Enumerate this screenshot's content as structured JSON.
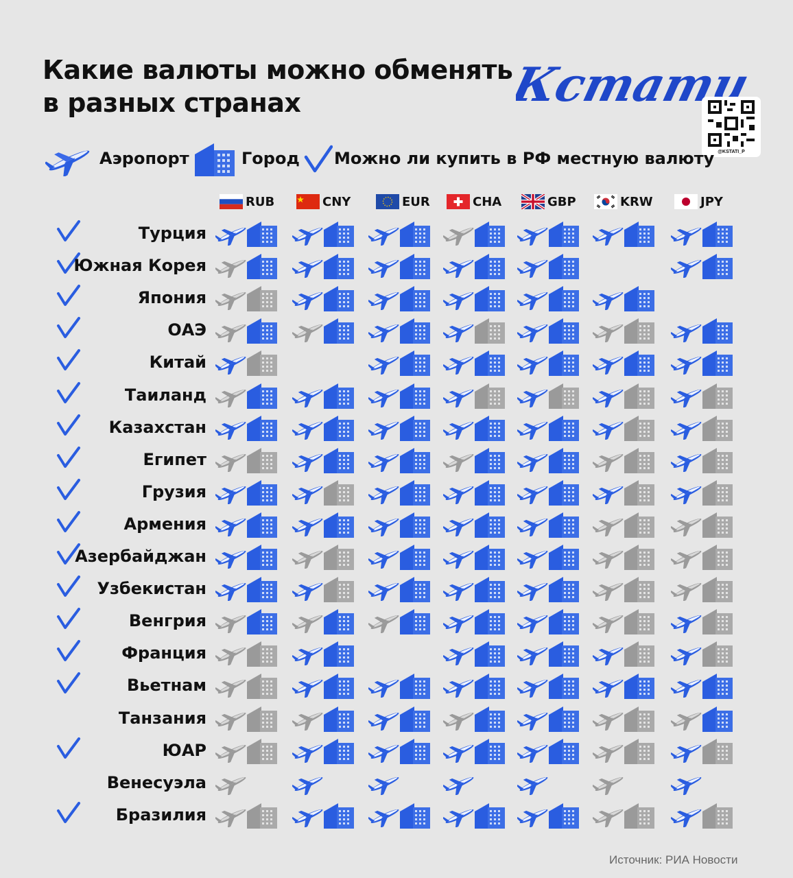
{
  "title_lines": [
    "Какие валюты можно обменять",
    "в разных странах"
  ],
  "logo_text": "Кстати,",
  "qr_handle": "@KSTATI_P",
  "legend": {
    "airport": "Аэропорт",
    "city": "Город",
    "buy_in_rf": "Можно ли купить в РФ местную валюту"
  },
  "currencies": [
    "RUB",
    "CNY",
    "EUR",
    "CHA",
    "GBP",
    "KRW",
    "JPY"
  ],
  "colors": {
    "blue": "#2a5de0",
    "grey": "#9a9a9a",
    "check": "#2a5de0"
  },
  "rows": [
    {
      "country": "Турция",
      "check": true,
      "cells": [
        [
          "b",
          "b"
        ],
        [
          "b",
          "b"
        ],
        [
          "b",
          "b"
        ],
        [
          "g",
          "b"
        ],
        [
          "b",
          "b"
        ],
        [
          "b",
          "b"
        ],
        [
          "b",
          "b"
        ]
      ]
    },
    {
      "country": "Южная Корея",
      "check": true,
      "cells": [
        [
          "g",
          "b"
        ],
        [
          "b",
          "b"
        ],
        [
          "b",
          "b"
        ],
        [
          "b",
          "b"
        ],
        [
          "b",
          "b"
        ],
        [
          "-",
          "-"
        ],
        [
          "b",
          "b"
        ]
      ]
    },
    {
      "country": "Япония",
      "check": true,
      "cells": [
        [
          "g",
          "g"
        ],
        [
          "b",
          "b"
        ],
        [
          "b",
          "b"
        ],
        [
          "b",
          "b"
        ],
        [
          "b",
          "b"
        ],
        [
          "b",
          "b"
        ],
        [
          "-",
          "-"
        ]
      ]
    },
    {
      "country": "ОАЭ",
      "check": true,
      "cells": [
        [
          "g",
          "b"
        ],
        [
          "g",
          "b"
        ],
        [
          "b",
          "b"
        ],
        [
          "b",
          "g"
        ],
        [
          "b",
          "b"
        ],
        [
          "g",
          "g"
        ],
        [
          "b",
          "b"
        ]
      ]
    },
    {
      "country": "Китай",
      "check": true,
      "cells": [
        [
          "b",
          "g"
        ],
        [
          "-",
          "-"
        ],
        [
          "b",
          "b"
        ],
        [
          "b",
          "b"
        ],
        [
          "b",
          "b"
        ],
        [
          "b",
          "b"
        ],
        [
          "b",
          "b"
        ]
      ]
    },
    {
      "country": "Таиланд",
      "check": true,
      "cells": [
        [
          "g",
          "b"
        ],
        [
          "b",
          "b"
        ],
        [
          "b",
          "b"
        ],
        [
          "b",
          "g"
        ],
        [
          "b",
          "g"
        ],
        [
          "b",
          "g"
        ],
        [
          "b",
          "g"
        ]
      ]
    },
    {
      "country": "Казахстан",
      "check": true,
      "cells": [
        [
          "b",
          "b"
        ],
        [
          "b",
          "b"
        ],
        [
          "b",
          "b"
        ],
        [
          "b",
          "b"
        ],
        [
          "b",
          "b"
        ],
        [
          "b",
          "g"
        ],
        [
          "b",
          "g"
        ]
      ]
    },
    {
      "country": "Египет",
      "check": true,
      "cells": [
        [
          "g",
          "g"
        ],
        [
          "b",
          "b"
        ],
        [
          "b",
          "b"
        ],
        [
          "g",
          "b"
        ],
        [
          "b",
          "b"
        ],
        [
          "g",
          "g"
        ],
        [
          "b",
          "g"
        ]
      ]
    },
    {
      "country": "Грузия",
      "check": true,
      "cells": [
        [
          "b",
          "b"
        ],
        [
          "b",
          "g"
        ],
        [
          "b",
          "b"
        ],
        [
          "b",
          "b"
        ],
        [
          "b",
          "b"
        ],
        [
          "b",
          "g"
        ],
        [
          "b",
          "g"
        ]
      ]
    },
    {
      "country": "Армения",
      "check": true,
      "cells": [
        [
          "b",
          "b"
        ],
        [
          "b",
          "b"
        ],
        [
          "b",
          "b"
        ],
        [
          "b",
          "b"
        ],
        [
          "b",
          "b"
        ],
        [
          "g",
          "g"
        ],
        [
          "g",
          "g"
        ]
      ]
    },
    {
      "country": "Азербайджан",
      "check": true,
      "cells": [
        [
          "b",
          "b"
        ],
        [
          "g",
          "g"
        ],
        [
          "b",
          "b"
        ],
        [
          "b",
          "b"
        ],
        [
          "b",
          "b"
        ],
        [
          "g",
          "g"
        ],
        [
          "g",
          "g"
        ]
      ]
    },
    {
      "country": "Узбекистан",
      "check": true,
      "cells": [
        [
          "b",
          "b"
        ],
        [
          "b",
          "g"
        ],
        [
          "b",
          "b"
        ],
        [
          "b",
          "b"
        ],
        [
          "b",
          "b"
        ],
        [
          "g",
          "g"
        ],
        [
          "g",
          "g"
        ]
      ]
    },
    {
      "country": "Венгрия",
      "check": true,
      "cells": [
        [
          "g",
          "b"
        ],
        [
          "g",
          "b"
        ],
        [
          "g",
          "b"
        ],
        [
          "b",
          "b"
        ],
        [
          "b",
          "b"
        ],
        [
          "g",
          "g"
        ],
        [
          "b",
          "g"
        ]
      ]
    },
    {
      "country": "Франция",
      "check": true,
      "cells": [
        [
          "g",
          "g"
        ],
        [
          "b",
          "b"
        ],
        [
          "-",
          "-"
        ],
        [
          "b",
          "b"
        ],
        [
          "b",
          "b"
        ],
        [
          "b",
          "g"
        ],
        [
          "b",
          "g"
        ]
      ]
    },
    {
      "country": "Вьетнам",
      "check": true,
      "cells": [
        [
          "g",
          "g"
        ],
        [
          "b",
          "b"
        ],
        [
          "b",
          "b"
        ],
        [
          "b",
          "b"
        ],
        [
          "b",
          "b"
        ],
        [
          "b",
          "b"
        ],
        [
          "b",
          "b"
        ]
      ]
    },
    {
      "country": "Танзания",
      "check": false,
      "cells": [
        [
          "g",
          "g"
        ],
        [
          "g",
          "b"
        ],
        [
          "b",
          "b"
        ],
        [
          "g",
          "b"
        ],
        [
          "b",
          "b"
        ],
        [
          "g",
          "g"
        ],
        [
          "g",
          "b"
        ]
      ]
    },
    {
      "country": "ЮАР",
      "check": true,
      "cells": [
        [
          "g",
          "g"
        ],
        [
          "b",
          "b"
        ],
        [
          "b",
          "b"
        ],
        [
          "b",
          "b"
        ],
        [
          "b",
          "b"
        ],
        [
          "g",
          "g"
        ],
        [
          "b",
          "g"
        ]
      ]
    },
    {
      "country": "Венесуэла",
      "check": false,
      "cells": [
        [
          "g",
          "-"
        ],
        [
          "b",
          "-"
        ],
        [
          "b",
          "-"
        ],
        [
          "b",
          "-"
        ],
        [
          "b",
          "-"
        ],
        [
          "g",
          "-"
        ],
        [
          "b",
          "-"
        ]
      ]
    },
    {
      "country": "Бразилия",
      "check": true,
      "cells": [
        [
          "g",
          "g"
        ],
        [
          "b",
          "b"
        ],
        [
          "b",
          "b"
        ],
        [
          "b",
          "b"
        ],
        [
          "b",
          "b"
        ],
        [
          "g",
          "g"
        ],
        [
          "b",
          "g"
        ]
      ]
    }
  ],
  "source": "Источник: РИА Новости"
}
